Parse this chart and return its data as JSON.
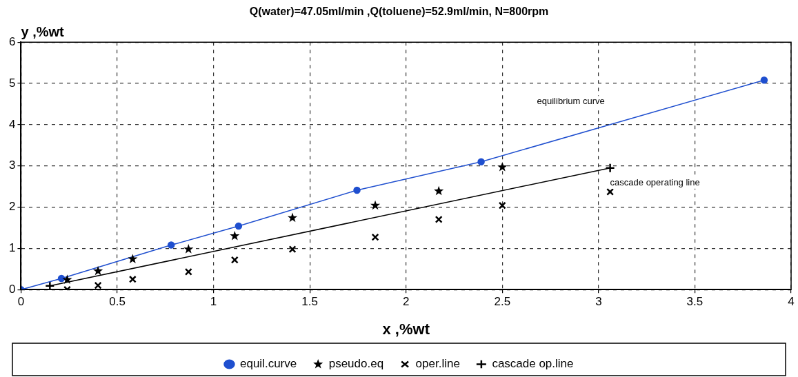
{
  "chart_data": {
    "type": "line",
    "title": "Q(water)=47.05ml/min ,Q(toluene)=52.9ml/min, N=800rpm",
    "xlabel": "x ,%wt",
    "ylabel": "y ,%wt",
    "xlim": [
      0,
      4
    ],
    "xticks": [
      0,
      0.5,
      1,
      1.5,
      2,
      2.5,
      3,
      3.5,
      4
    ],
    "ylim": [
      0,
      6
    ],
    "yticks": [
      0,
      1,
      2,
      3,
      4,
      5,
      6
    ],
    "grid": true,
    "legend": "bottom",
    "annotations": [
      "equilibrium curve",
      "cascade operating line"
    ],
    "series": [
      {
        "name": "equil.curve",
        "type": "line",
        "color": "#1f4fcf",
        "marker": "circle",
        "x": [
          0,
          0.21,
          0.78,
          1.13,
          1.745,
          2.39,
          3.86
        ],
        "values": [
          0,
          0.27,
          1.08,
          1.54,
          2.41,
          3.1,
          5.08
        ]
      },
      {
        "name": "pseudo.eq",
        "type": "scatter",
        "color": "#000000",
        "marker": "star",
        "x": [
          0.24,
          0.4,
          0.58,
          0.87,
          1.11,
          1.41,
          1.84,
          2.17,
          2.5
        ],
        "values": [
          0.24,
          0.45,
          0.74,
          0.98,
          1.3,
          1.74,
          2.04,
          2.39,
          2.97
        ]
      },
      {
        "name": "oper.line",
        "type": "scatter",
        "color": "#000000",
        "marker": "cross",
        "x": [
          0.24,
          0.4,
          0.58,
          0.87,
          1.11,
          1.41,
          1.84,
          2.17,
          2.5,
          3.06
        ],
        "values": [
          0,
          0.1,
          0.25,
          0.43,
          0.72,
          0.98,
          1.27,
          1.7,
          2.04,
          2.37
        ]
      },
      {
        "name": "cascade op.line",
        "type": "line",
        "color": "#000000",
        "marker": "plus",
        "x": [
          0.15,
          3.06
        ],
        "values": [
          0.09,
          2.95
        ]
      }
    ]
  }
}
